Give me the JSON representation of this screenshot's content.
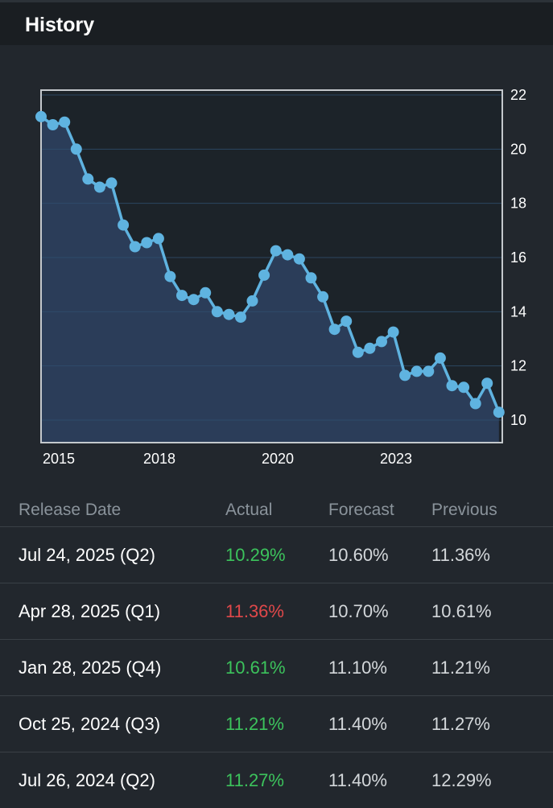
{
  "header": {
    "title": "History"
  },
  "colors": {
    "line": "#5fb3e0",
    "fill": "#2c3f5c",
    "up": "#3cc35c",
    "down": "#e0484a"
  },
  "chart_data": {
    "type": "line",
    "title": "",
    "xlabel": "",
    "ylabel": "",
    "x_ticks": [
      "2015",
      "2018",
      "2020",
      "2023"
    ],
    "y_ticks": [
      10,
      12,
      14,
      16,
      18,
      20,
      22
    ],
    "ylim": [
      9.2,
      22.2
    ],
    "xlim": [
      2014.58,
      2025.58
    ],
    "y_axis_position": "right",
    "grid": true,
    "series": [
      {
        "name": "",
        "x": [
          2014.58,
          2014.86,
          2015.14,
          2015.42,
          2015.7,
          2015.98,
          2016.26,
          2016.54,
          2016.82,
          2017.1,
          2017.38,
          2017.66,
          2017.94,
          2018.22,
          2018.5,
          2018.78,
          2019.06,
          2019.34,
          2019.62,
          2019.9,
          2020.18,
          2020.46,
          2020.74,
          2021.02,
          2021.3,
          2021.58,
          2021.86,
          2022.14,
          2022.42,
          2022.7,
          2022.98,
          2023.26,
          2023.54,
          2023.82,
          2024.1,
          2024.38,
          2024.66,
          2024.94,
          2025.22,
          2025.5
        ],
        "values": [
          21.2,
          20.9,
          21.0,
          20.0,
          18.9,
          18.6,
          18.75,
          17.2,
          16.4,
          16.55,
          16.7,
          15.3,
          14.6,
          14.45,
          14.7,
          14.0,
          13.9,
          13.8,
          14.4,
          15.35,
          16.25,
          16.1,
          15.95,
          15.25,
          14.55,
          13.35,
          13.65,
          12.5,
          12.65,
          12.9,
          13.25,
          11.65,
          11.8,
          11.8,
          12.29,
          11.27,
          11.21,
          10.61,
          11.36,
          10.29
        ]
      }
    ]
  },
  "table": {
    "headers": [
      "Release Date",
      "Actual",
      "Forecast",
      "Previous"
    ],
    "rows": [
      {
        "date": "Jul 24, 2025 (Q2)",
        "actual": "10.29%",
        "actual_status": "up",
        "forecast": "10.60%",
        "previous": "11.36%"
      },
      {
        "date": "Apr 28, 2025 (Q1)",
        "actual": "11.36%",
        "actual_status": "down",
        "forecast": "10.70%",
        "previous": "10.61%"
      },
      {
        "date": "Jan 28, 2025 (Q4)",
        "actual": "10.61%",
        "actual_status": "up",
        "forecast": "11.10%",
        "previous": "11.21%"
      },
      {
        "date": "Oct 25, 2024 (Q3)",
        "actual": "11.21%",
        "actual_status": "up",
        "forecast": "11.40%",
        "previous": "11.27%"
      },
      {
        "date": "Jul 26, 2024 (Q2)",
        "actual": "11.27%",
        "actual_status": "up",
        "forecast": "11.40%",
        "previous": "12.29%"
      }
    ]
  }
}
